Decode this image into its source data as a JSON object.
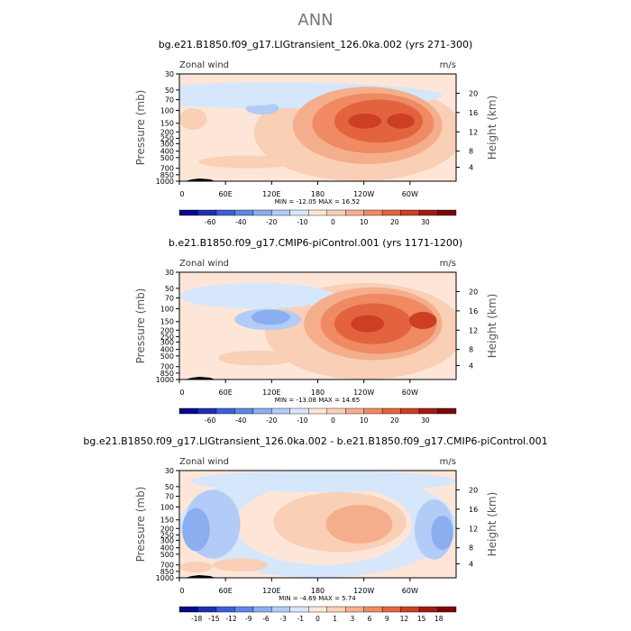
{
  "suptitle": "ANN",
  "chart_data": [
    {
      "type": "heatmap",
      "title": "bg.e21.B1850.f09_g17.LIGtransient_126.0ka.002 (yrs 271-300)",
      "left_label": "Zonal wind",
      "units": "m/s",
      "ylabel": "Pressure (mb)",
      "y2label": "Height (km)",
      "yticks": [
        "30",
        "50",
        "70",
        "100",
        "150",
        "200",
        "250",
        "300",
        "400",
        "500",
        "700",
        "850",
        "1000"
      ],
      "y2ticks": [
        "20",
        "16",
        "12",
        "8",
        "4"
      ],
      "xticks": [
        "0",
        "60E",
        "120E",
        "180",
        "120W",
        "60W"
      ],
      "stats": "MIN = -12.05   MAX = 16.52",
      "colorbar_levels": [
        "-60",
        "-40",
        "-20",
        "-10",
        "0",
        "10",
        "20",
        "30"
      ],
      "colorbar_colors": [
        "#08088a",
        "#1f2fb5",
        "#3a5fd6",
        "#5f86e6",
        "#8aaef0",
        "#b3ccf7",
        "#d6e6fb",
        "#fde6d8",
        "#f9cfb6",
        "#f5ae8c",
        "#ef8a62",
        "#e4633f",
        "#cc3f22",
        "#a51a10",
        "#7a0808"
      ],
      "min": -12.05,
      "max": 16.52
    },
    {
      "type": "heatmap",
      "title": "b.e21.B1850.f09_g17.CMIP6-piControl.001 (yrs 1171-1200)",
      "left_label": "Zonal wind",
      "units": "m/s",
      "ylabel": "Pressure (mb)",
      "y2label": "Height (km)",
      "yticks": [
        "30",
        "50",
        "70",
        "100",
        "150",
        "200",
        "250",
        "300",
        "400",
        "500",
        "700",
        "850",
        "1000"
      ],
      "y2ticks": [
        "20",
        "16",
        "12",
        "8",
        "4"
      ],
      "xticks": [
        "0",
        "60E",
        "120E",
        "180",
        "120W",
        "60W"
      ],
      "stats": "MIN = -13.08   MAX = 14.65",
      "colorbar_levels": [
        "-60",
        "-40",
        "-20",
        "-10",
        "0",
        "10",
        "20",
        "30"
      ],
      "colorbar_colors": [
        "#08088a",
        "#1f2fb5",
        "#3a5fd6",
        "#5f86e6",
        "#8aaef0",
        "#b3ccf7",
        "#d6e6fb",
        "#fde6d8",
        "#f9cfb6",
        "#f5ae8c",
        "#ef8a62",
        "#e4633f",
        "#cc3f22",
        "#a51a10",
        "#7a0808"
      ],
      "min": -13.08,
      "max": 14.65
    },
    {
      "type": "heatmap",
      "title": "bg.e21.B1850.f09_g17.LIGtransient_126.0ka.002 - b.e21.B1850.f09_g17.CMIP6-piControl.001",
      "left_label": "Zonal wind",
      "units": "m/s",
      "ylabel": "Pressure (mb)",
      "y2label": "Height (km)",
      "yticks": [
        "30",
        "50",
        "70",
        "100",
        "150",
        "200",
        "250",
        "300",
        "400",
        "500",
        "700",
        "850",
        "1000"
      ],
      "y2ticks": [
        "20",
        "16",
        "12",
        "8",
        "4"
      ],
      "xticks": [
        "0",
        "60E",
        "120E",
        "180",
        "120W",
        "60W"
      ],
      "stats": "MIN = -4.69   MAX = 5.74",
      "colorbar_levels": [
        "-18",
        "-15",
        "-12",
        "-9",
        "-6",
        "-3",
        "-1",
        "0",
        "1",
        "3",
        "6",
        "9",
        "12",
        "15",
        "18"
      ],
      "colorbar_colors": [
        "#08088a",
        "#1f2fb5",
        "#3a5fd6",
        "#5f86e6",
        "#8aaef0",
        "#b3ccf7",
        "#d6e6fb",
        "#fde6d8",
        "#f9cfb6",
        "#f5ae8c",
        "#ef8a62",
        "#e4633f",
        "#cc3f22",
        "#a51a10",
        "#7a0808"
      ],
      "min": -4.69,
      "max": 5.74
    }
  ]
}
